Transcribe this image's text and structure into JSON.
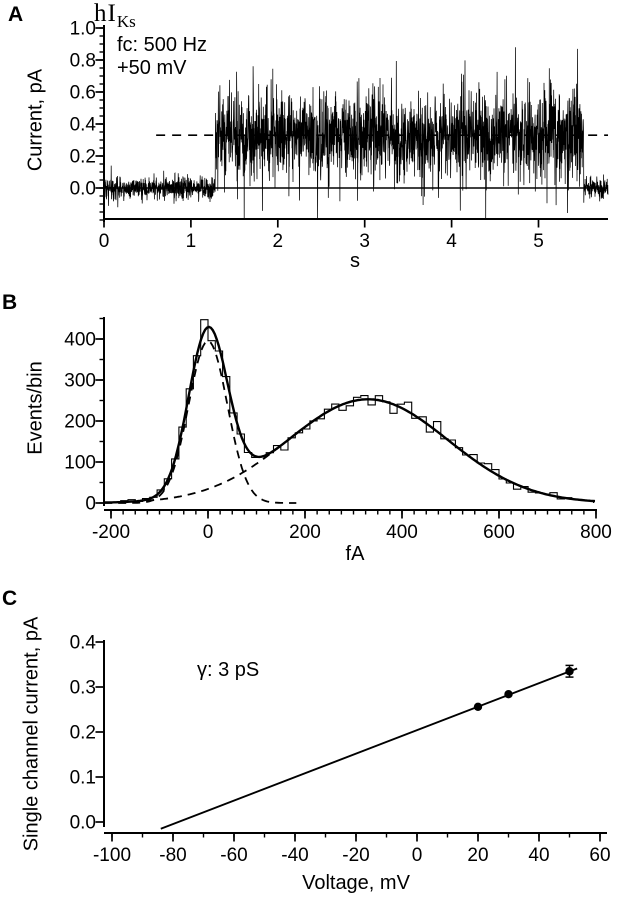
{
  "figure": {
    "background": "#ffffff",
    "ink_color": "#000000"
  },
  "chart_data": [
    {
      "type": "line",
      "panel": "A",
      "title_text": "hIKs",
      "title_main": "hI",
      "title_sub": "Ks",
      "annotations": [
        "fc: 500 Hz",
        "+50 mV"
      ],
      "xlabel": "s",
      "ylabel": "Current, pA",
      "xlim": [
        0,
        5.8
      ],
      "ylim": [
        -0.21,
        1.02
      ],
      "xtick_values": [
        0,
        1,
        2,
        3,
        4,
        5
      ],
      "xtick_labels": [
        "0",
        "1",
        "2",
        "3",
        "4",
        "5"
      ],
      "ytick_values": [
        0.0,
        0.2,
        0.4,
        0.6,
        0.8,
        1.0
      ],
      "ytick_labels": [
        "0.0",
        "0.2",
        "0.4",
        "0.6",
        "0.8",
        "1.0"
      ],
      "y_minor_step": 0.05,
      "grid": false,
      "trace": {
        "baseline_level_pA": 0.0,
        "open_level_pA": 0.33,
        "open_start_s": 1.28,
        "open_end_s": 5.52,
        "baseline_noise_sd_pA": 0.035,
        "open_noise_sd_pA": 0.135,
        "spike_clip_pA": [
          -0.19,
          1.0
        ],
        "samples": 2600,
        "seed": 12345
      },
      "mean_line": {
        "level_pA": 0.33,
        "start_s": 0.6,
        "end_s": 5.8,
        "style": "dashed"
      },
      "zero_line_pA": 0.0
    },
    {
      "type": "histogram",
      "panel": "B",
      "xlabel": "fA",
      "ylabel": "Events/bin",
      "xlim": [
        -214,
        810
      ],
      "ylim": [
        0,
        455
      ],
      "xtick_values": [
        -200,
        0,
        200,
        400,
        600,
        800
      ],
      "xtick_labels": [
        "-200",
        "0",
        "200",
        "400",
        "600",
        "800"
      ],
      "x_minor_step": 25,
      "ytick_values": [
        0,
        100,
        200,
        300,
        400
      ],
      "ytick_labels": [
        "0",
        "100",
        "200",
        "300",
        "400"
      ],
      "y_minor_step": 50,
      "grid": false,
      "bin_width_fA": 15,
      "bin_start_fA": -210,
      "bin_end_fA": 795,
      "gaussian_components": [
        {
          "amplitude_events": 395,
          "mean_fA": 0,
          "sigma_fA": 40
        },
        {
          "amplitude_events": 253,
          "mean_fA": 330,
          "sigma_fA": 165
        }
      ],
      "fit_total_peak_events": 429,
      "component_curve_style": "dashed",
      "total_curve_style": "solid",
      "histogram_noise_seed": 99
    },
    {
      "type": "scatter",
      "panel": "C",
      "xlabel": "Voltage, mV",
      "ylabel": "Single channel current, pA",
      "annotation": "γ: 3 pS",
      "conductance_pS": 3,
      "xlim": [
        -110,
        63
      ],
      "ylim": [
        -0.04,
        0.41
      ],
      "xtick_values": [
        -100,
        -80,
        -60,
        -40,
        -20,
        0,
        20,
        40,
        60
      ],
      "xtick_labels": [
        "-100",
        "-80",
        "-60",
        "-40",
        "-20",
        "0",
        "20",
        "40",
        "60"
      ],
      "x_minor_step": 10,
      "ytick_values": [
        0.0,
        0.1,
        0.2,
        0.3,
        0.4
      ],
      "ytick_labels": [
        "0.0",
        "0.1",
        "0.2",
        "0.3",
        "0.4"
      ],
      "grid": false,
      "points": [
        {
          "voltage_mV": 20,
          "current_pA": 0.256,
          "error_pA": 0.004
        },
        {
          "voltage_mV": 30,
          "current_pA": 0.284,
          "error_pA": 0.004
        },
        {
          "voltage_mV": 50,
          "current_pA": 0.335,
          "error_pA": 0.013
        }
      ],
      "fit_line": {
        "x1_mV": -84,
        "y1_pA": -0.015,
        "x2_mV": 52.5,
        "y2_pA": 0.341
      }
    }
  ]
}
